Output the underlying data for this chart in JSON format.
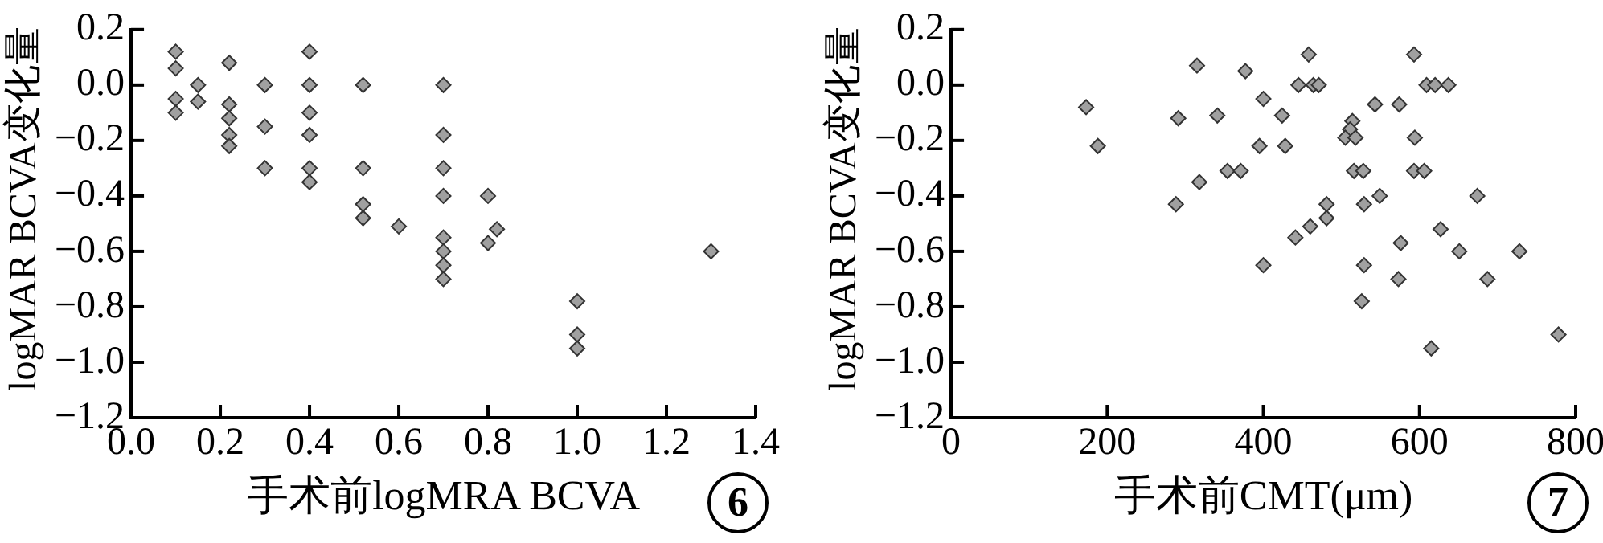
{
  "chart_data": [
    {
      "type": "scatter",
      "xlabel": "手术前logMRA BCVA",
      "ylabel": "logMAR BCVA变化量",
      "annotations": [
        "6"
      ],
      "marker": "diamond",
      "grid": false,
      "legend": false,
      "xlim": [
        0,
        1.4
      ],
      "xticks": [
        {
          "value": 0,
          "label": "0.0"
        },
        {
          "value": 0.2,
          "label": "0.2"
        },
        {
          "value": 0.4,
          "label": "0.4"
        },
        {
          "value": 0.6,
          "label": "0.6"
        },
        {
          "value": 0.8,
          "label": "0.8"
        },
        {
          "value": 1,
          "label": "1.0"
        },
        {
          "value": 1.2,
          "label": "1.2"
        },
        {
          "value": 1.4,
          "label": "1.4"
        }
      ],
      "ylim": [
        -1.2,
        0.2
      ],
      "yticks": [
        {
          "value": 0.2,
          "label": "0.2"
        },
        {
          "value": 0,
          "label": "0.0"
        },
        {
          "value": -0.2,
          "label": "−0.2"
        },
        {
          "value": -0.4,
          "label": "−0.4"
        },
        {
          "value": -0.6,
          "label": "−0.6"
        },
        {
          "value": -0.8,
          "label": "−0.8"
        },
        {
          "value": -1,
          "label": "−1.0"
        },
        {
          "value": -1.2,
          "label": "−1.2"
        }
      ],
      "series": [
        {
          "color": "#a0a0a0",
          "x": [
            0.1,
            0.1,
            0.1,
            0.1,
            0.15,
            0.15,
            0.22,
            0.22,
            0.22,
            0.22,
            0.22,
            0.3,
            0.3,
            0.3,
            0.4,
            0.4,
            0.4,
            0.4,
            0.4,
            0.4,
            0.52,
            0.52,
            0.52,
            0.52,
            0.6,
            0.7,
            0.7,
            0.7,
            0.7,
            0.7,
            0.7,
            0.7,
            0.7,
            0.8,
            0.8,
            0.82,
            1,
            1,
            1,
            1.3
          ],
          "values": [
            0.12,
            0.06,
            -0.05,
            -0.1,
            0,
            -0.06,
            0.08,
            -0.07,
            -0.12,
            -0.18,
            -0.22,
            0,
            -0.15,
            -0.3,
            0.12,
            0,
            -0.1,
            -0.18,
            -0.3,
            -0.35,
            0,
            -0.3,
            -0.43,
            -0.48,
            -0.51,
            0,
            -0.18,
            -0.3,
            -0.4,
            -0.55,
            -0.6,
            -0.65,
            -0.7,
            -0.4,
            -0.57,
            -0.52,
            -0.78,
            -0.9,
            -0.95,
            -0.6
          ]
        }
      ]
    },
    {
      "type": "scatter",
      "xlabel": "手术前CMT(μm)",
      "ylabel": "logMAR BCVA变化量",
      "annotations": [
        "7"
      ],
      "marker": "diamond",
      "grid": false,
      "legend": false,
      "xlim": [
        0,
        800
      ],
      "xticks": [
        0,
        200,
        400,
        600,
        800
      ],
      "ylim": [
        -1.2,
        0.2
      ],
      "yticks": [
        {
          "value": 0.2,
          "label": "0.2"
        },
        {
          "value": 0,
          "label": "0.0"
        },
        {
          "value": -0.2,
          "label": "−0.2"
        },
        {
          "value": -0.4,
          "label": "−0.4"
        },
        {
          "value": -0.6,
          "label": "−0.6"
        },
        {
          "value": -0.8,
          "label": "−0.8"
        },
        {
          "value": -1,
          "label": "−1.0"
        },
        {
          "value": -1.2,
          "label": "−1.2"
        }
      ],
      "series": [
        {
          "color": "#a0a0a0",
          "x": [
            173,
            188,
            291,
            288,
            315,
            318,
            341,
            354,
            371,
            377,
            400,
            395,
            400,
            458,
            593,
            445,
            464,
            471,
            609,
            620,
            637,
            424,
            428,
            543,
            574,
            514,
            511,
            505,
            518,
            594,
            516,
            528,
            593,
            606,
            481,
            529,
            549,
            674,
            481,
            460,
            441,
            576,
            627,
            651,
            728,
            529,
            573,
            687,
            526,
            615,
            778
          ],
          "values": [
            -0.08,
            -0.22,
            -0.12,
            -0.43,
            0.07,
            -0.35,
            -0.11,
            -0.31,
            -0.31,
            0.05,
            -0.05,
            -0.22,
            -0.65,
            0.11,
            0.11,
            0,
            0,
            0,
            0,
            0,
            0,
            -0.11,
            -0.22,
            -0.07,
            -0.07,
            -0.13,
            -0.16,
            -0.19,
            -0.19,
            -0.19,
            -0.31,
            -0.31,
            -0.31,
            -0.31,
            -0.43,
            -0.43,
            -0.4,
            -0.4,
            -0.48,
            -0.51,
            -0.55,
            -0.57,
            -0.52,
            -0.6,
            -0.6,
            -0.65,
            -0.7,
            -0.7,
            -0.78,
            -0.95,
            -0.9
          ]
        }
      ]
    }
  ]
}
